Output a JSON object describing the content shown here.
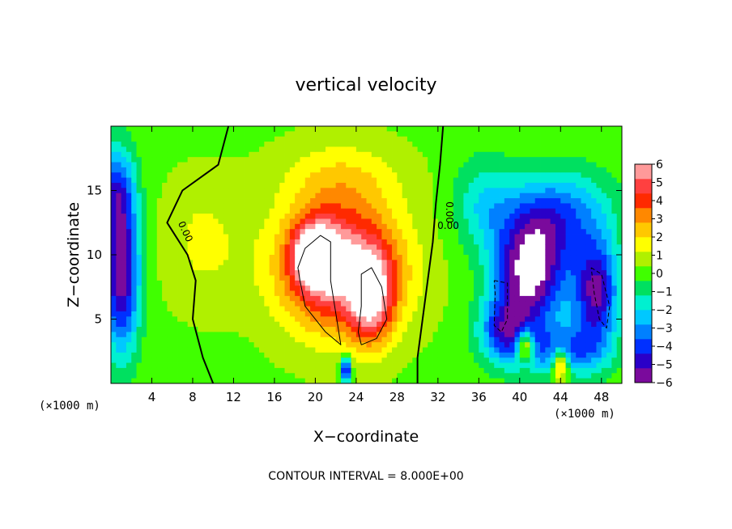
{
  "chart_data": {
    "type": "heatmap",
    "title": "vertical velocity",
    "xlabel": "X−coordinate",
    "ylabel": "Z−coordinate",
    "x_unit_left": "(×1000 m)",
    "x_unit_right": "(×1000 m)",
    "xlim": [
      0,
      50
    ],
    "ylim": [
      0,
      20
    ],
    "x_ticks": [
      4,
      8,
      12,
      16,
      20,
      24,
      28,
      32,
      36,
      40,
      44,
      48
    ],
    "x_tick_labels": [
      "4",
      "8",
      "12",
      "16",
      "20",
      "24",
      "28",
      "32",
      "36",
      "40",
      "44",
      "48"
    ],
    "y_ticks": [
      5,
      10,
      15
    ],
    "y_tick_labels": [
      "5",
      "10",
      "15"
    ],
    "colorbar": {
      "min": -6,
      "max": 6,
      "tick_values": [
        6,
        5,
        4,
        3,
        2,
        1,
        0,
        -1,
        -2,
        -3,
        -4,
        -5,
        -6
      ],
      "tick_labels": [
        "6",
        "5",
        "4",
        "3",
        "2",
        "1",
        "0",
        "−1",
        "−2",
        "−3",
        "−4",
        "−5",
        "−6"
      ],
      "colors": [
        "#7a0a9c",
        "#2a00c8",
        "#0030ff",
        "#0080ff",
        "#00c8ff",
        "#00f0d0",
        "#00e060",
        "#40ff00",
        "#b0f000",
        "#ffff00",
        "#ffc800",
        "#ff8800",
        "#ff2a00",
        "#ff4040",
        "#ff9a9a"
      ]
    },
    "contour_labels": [
      {
        "text": "0.00",
        "x": 7.0,
        "y": 11.7,
        "rotate": 65
      },
      {
        "text": "0.00",
        "x": 32.8,
        "y": 13.3,
        "rotate": 90
      },
      {
        "text": "0.00",
        "x": 33.0,
        "y": 12.0,
        "rotate": 0
      }
    ],
    "field_features": [
      {
        "type": "updraft",
        "cx": 22.5,
        "cz": 9.0,
        "sx": 6.0,
        "sz": 5.0,
        "amp": 6.0
      },
      {
        "type": "updraft",
        "cx": 20.0,
        "cz": 10.0,
        "sx": 2.2,
        "sz": 2.5,
        "amp": 5.0
      },
      {
        "type": "updraft",
        "cx": 25.5,
        "cz": 6.5,
        "sx": 2.2,
        "sz": 3.5,
        "amp": 4.0
      },
      {
        "type": "updraft",
        "cx": 22.5,
        "cz": 16.0,
        "sx": 6.0,
        "sz": 3.0,
        "amp": 1.5
      },
      {
        "type": "updraft",
        "cx": 9.0,
        "cz": 11.0,
        "sx": 4.0,
        "sz": 5.0,
        "amp": 1.2
      },
      {
        "type": "downdraft",
        "cx": 1.0,
        "cz": 8.5,
        "sx": 1.8,
        "sz": 6.0,
        "amp": -6.0
      },
      {
        "type": "downdraft",
        "cx": 0.5,
        "cz": 15.0,
        "sx": 1.8,
        "sz": 3.5,
        "amp": -3.5
      },
      {
        "type": "downdraft",
        "cx": 41.0,
        "cz": 8.5,
        "sx": 3.5,
        "sz": 4.5,
        "amp": -6.5
      },
      {
        "type": "downdraft",
        "cx": 38.5,
        "cz": 4.0,
        "sx": 2.5,
        "sz": 2.5,
        "amp": -4.0
      },
      {
        "type": "downdraft",
        "cx": 47.5,
        "cz": 7.0,
        "sx": 2.2,
        "sz": 4.0,
        "amp": -5.5
      },
      {
        "type": "downdraft",
        "cx": 44.0,
        "cz": 13.0,
        "sx": 5.0,
        "sz": 3.5,
        "amp": -3.5
      },
      {
        "type": "downdraft",
        "cx": 36.5,
        "cz": 14.0,
        "sx": 3.0,
        "sz": 3.5,
        "amp": -2.0
      },
      {
        "type": "downdraft",
        "cx": 44.5,
        "cz": 2.5,
        "sx": 4.0,
        "sz": 2.0,
        "amp": -3.5
      },
      {
        "type": "updraft",
        "cx": 40.5,
        "cz": 3.0,
        "sx": 0.8,
        "sz": 1.2,
        "amp": 5.0
      },
      {
        "type": "updraft",
        "cx": 44.0,
        "cz": 1.5,
        "sx": 0.8,
        "sz": 1.2,
        "amp": 5.0
      },
      {
        "type": "updraft",
        "cx": 23.0,
        "cz": 1.0,
        "sx": 0.5,
        "sz": 1.0,
        "amp": -6.0
      }
    ],
    "contour_lines": [
      {
        "style": "solid",
        "width": 2,
        "points": [
          [
            11.5,
            20
          ],
          [
            10.5,
            17
          ],
          [
            7,
            15
          ],
          [
            5.5,
            12.5
          ],
          [
            7.5,
            10
          ],
          [
            8.3,
            8
          ],
          [
            8,
            5
          ],
          [
            9,
            2
          ],
          [
            10,
            0
          ]
        ]
      },
      {
        "style": "solid",
        "width": 2,
        "points": [
          [
            32.5,
            20
          ],
          [
            32.2,
            17
          ],
          [
            31.8,
            14
          ],
          [
            31.5,
            11
          ],
          [
            31,
            8
          ],
          [
            30.5,
            5
          ],
          [
            30,
            2
          ],
          [
            30,
            0
          ]
        ]
      },
      {
        "style": "solid",
        "width": 1,
        "points": [
          [
            18.5,
            8
          ],
          [
            19,
            6
          ],
          [
            21,
            4
          ],
          [
            22.5,
            3
          ],
          [
            22,
            5.5
          ],
          [
            21.5,
            8
          ],
          [
            21.5,
            11
          ],
          [
            20.5,
            11.5
          ],
          [
            19,
            10.5
          ],
          [
            18.3,
            9
          ],
          [
            18.5,
            8
          ]
        ]
      },
      {
        "style": "solid",
        "width": 1,
        "points": [
          [
            24.5,
            3
          ],
          [
            26,
            3.5
          ],
          [
            27,
            5
          ],
          [
            26.5,
            7.5
          ],
          [
            25.5,
            9
          ],
          [
            24.5,
            8.5
          ],
          [
            24.5,
            6
          ],
          [
            24.2,
            4
          ],
          [
            24.5,
            3
          ]
        ]
      },
      {
        "style": "dashed",
        "width": 1,
        "points": [
          [
            37.5,
            8
          ],
          [
            38.8,
            7.8
          ],
          [
            38.8,
            5
          ],
          [
            38.2,
            4
          ],
          [
            37.5,
            4.5
          ],
          [
            37.6,
            7
          ],
          [
            37.5,
            8
          ]
        ]
      },
      {
        "style": "dashed",
        "width": 1,
        "points": [
          [
            47,
            9
          ],
          [
            48,
            8.5
          ],
          [
            48.8,
            6
          ],
          [
            48.5,
            4.3
          ],
          [
            47.8,
            5
          ],
          [
            47.3,
            7
          ],
          [
            47,
            9
          ]
        ]
      }
    ]
  }
}
